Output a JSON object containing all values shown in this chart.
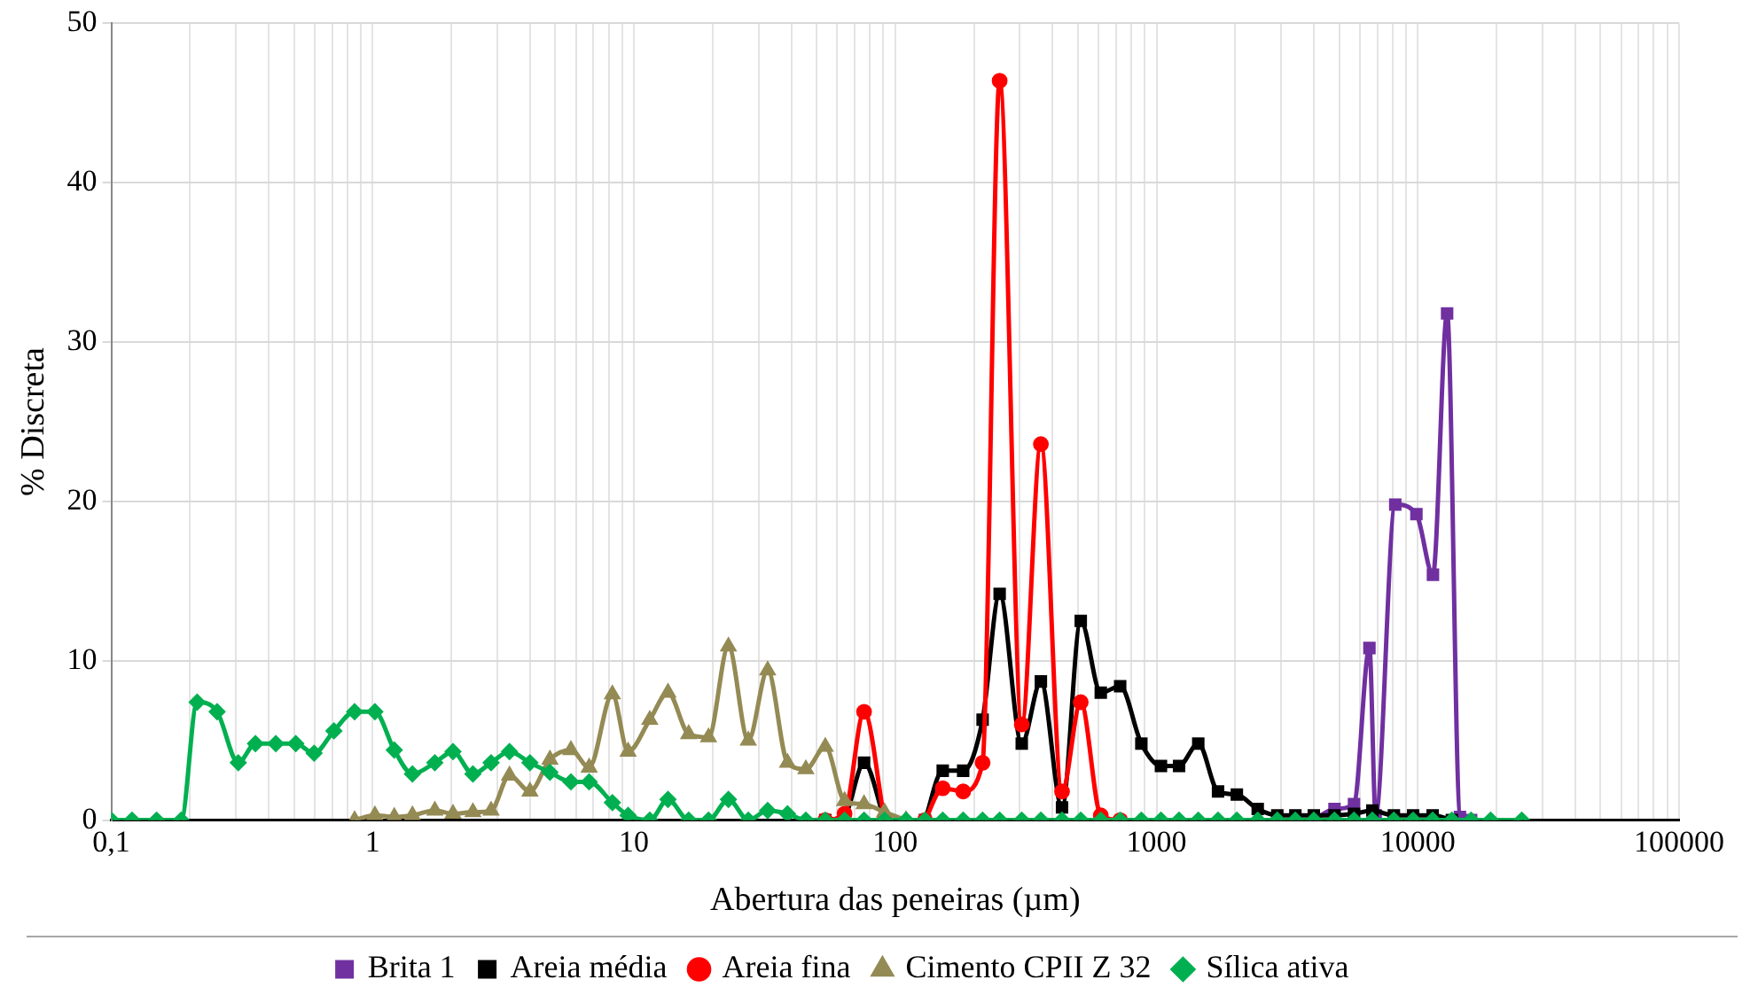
{
  "chart_data": {
    "type": "line",
    "xlabel": "Abertura das peneiras (µm)",
    "ylabel": "% Discreta",
    "log": "x",
    "grid": true,
    "legend": "bottom",
    "line_style": "solid",
    "xlim": [
      0.1,
      100000
    ],
    "ylim": [
      0,
      50
    ],
    "yticks": [
      0,
      10,
      20,
      30,
      40,
      50
    ],
    "xticks": [
      {
        "value": 0.1,
        "label": "0,1"
      },
      {
        "value": 0.2,
        "label": null
      },
      {
        "value": 0.3,
        "label": null
      },
      {
        "value": 0.4,
        "label": null
      },
      {
        "value": 0.5,
        "label": null
      },
      {
        "value": 0.6,
        "label": null
      },
      {
        "value": 0.7,
        "label": null
      },
      {
        "value": 0.8,
        "label": null
      },
      {
        "value": 0.9,
        "label": null
      },
      1,
      {
        "value": 2,
        "label": null
      },
      {
        "value": 3,
        "label": null
      },
      {
        "value": 4,
        "label": null
      },
      {
        "value": 5,
        "label": null
      },
      {
        "value": 6,
        "label": null
      },
      {
        "value": 7,
        "label": null
      },
      {
        "value": 8,
        "label": null
      },
      {
        "value": 9,
        "label": null
      },
      10,
      {
        "value": 20,
        "label": null
      },
      {
        "value": 30,
        "label": null
      },
      {
        "value": 40,
        "label": null
      },
      {
        "value": 50,
        "label": null
      },
      {
        "value": 60,
        "label": null
      },
      {
        "value": 70,
        "label": null
      },
      {
        "value": 80,
        "label": null
      },
      {
        "value": 90,
        "label": null
      },
      100,
      {
        "value": 200,
        "label": null
      },
      {
        "value": 300,
        "label": null
      },
      {
        "value": 400,
        "label": null
      },
      {
        "value": 500,
        "label": null
      },
      {
        "value": 600,
        "label": null
      },
      {
        "value": 700,
        "label": null
      },
      {
        "value": 800,
        "label": null
      },
      {
        "value": 900,
        "label": null
      },
      1000,
      {
        "value": 2000,
        "label": null
      },
      {
        "value": 3000,
        "label": null
      },
      {
        "value": 4000,
        "label": null
      },
      {
        "value": 5000,
        "label": null
      },
      {
        "value": 6000,
        "label": null
      },
      {
        "value": 7000,
        "label": null
      },
      {
        "value": 8000,
        "label": null
      },
      {
        "value": 9000,
        "label": null
      },
      10000,
      {
        "value": 20000,
        "label": null
      },
      {
        "value": 30000,
        "label": null
      },
      {
        "value": 40000,
        "label": null
      },
      {
        "value": 50000,
        "label": null
      },
      {
        "value": 60000,
        "label": null
      },
      {
        "value": 70000,
        "label": null
      },
      {
        "value": 80000,
        "label": null
      },
      {
        "value": 90000,
        "label": null
      },
      100000
    ],
    "x": [
      0.1,
      0.12,
      0.149,
      0.185,
      0.213,
      0.254,
      0.306,
      0.356,
      0.426,
      0.508,
      0.597,
      0.711,
      0.853,
      1.02,
      1.21,
      1.42,
      1.73,
      2.03,
      2.42,
      2.84,
      3.34,
      4.0,
      4.77,
      5.74,
      6.74,
      8.27,
      9.5,
      11.5,
      13.5,
      16.2,
      19.3,
      23,
      27.4,
      32.5,
      38.7,
      45.5,
      54,
      64,
      76,
      91,
      110,
      130,
      152,
      182,
      216,
      251,
      305,
      361,
      435,
      513,
      612,
      726,
      875,
      1040,
      1220,
      1445,
      1720,
      2030,
      2440,
      2900,
      3400,
      4000,
      4800,
      5700,
      6700,
      8100,
      9600,
      11400,
      13500,
      16000,
      19000,
      25000
    ],
    "series": [
      {
        "name": "Brita 1",
        "color": "#7030a0",
        "marker": "square",
        "x": [
          4000,
          4800,
          5700,
          6530,
          6900,
          8200,
          9880,
          11430,
          12950,
          14500,
          16000
        ],
        "values": [
          0,
          0.7,
          1.0,
          10.8,
          0.3,
          19.8,
          19.2,
          15.4,
          31.8,
          0.2,
          0
        ]
      },
      {
        "name": "Areia média",
        "color": "#000000",
        "marker": "square",
        "values": [
          null,
          null,
          null,
          null,
          null,
          null,
          null,
          null,
          null,
          null,
          null,
          null,
          null,
          null,
          null,
          null,
          null,
          null,
          null,
          null,
          null,
          null,
          null,
          null,
          null,
          null,
          null,
          null,
          null,
          null,
          null,
          null,
          null,
          null,
          null,
          null,
          0,
          0.3,
          3.6,
          0,
          null,
          0,
          3.1,
          3.1,
          6.3,
          14.2,
          4.8,
          8.7,
          0.8,
          12.5,
          8.0,
          8.4,
          4.8,
          3.4,
          3.4,
          4.8,
          1.8,
          1.6,
          0.7,
          0.3,
          0.3,
          0.3,
          0.3,
          0.4,
          0.6,
          0.3,
          0.3,
          0.3,
          0,
          null,
          null,
          null
        ]
      },
      {
        "name": "Areia fina",
        "color": "#ff0000",
        "marker": "circle",
        "values": [
          null,
          null,
          null,
          null,
          null,
          null,
          null,
          null,
          null,
          null,
          null,
          null,
          null,
          null,
          null,
          null,
          null,
          null,
          null,
          null,
          null,
          null,
          null,
          null,
          null,
          null,
          null,
          null,
          null,
          null,
          null,
          null,
          null,
          null,
          null,
          null,
          0,
          0.4,
          6.8,
          0,
          null,
          0,
          2.0,
          1.8,
          3.6,
          46.4,
          6.0,
          23.6,
          1.8,
          7.4,
          0.3,
          0,
          null,
          null,
          null,
          null,
          null,
          null,
          null,
          null,
          null,
          null,
          null,
          null,
          null,
          null,
          null,
          null,
          null,
          null,
          null,
          null
        ]
      },
      {
        "name": "Cimento CPII Z 32",
        "color": "#948a54",
        "marker": "triangle",
        "values": [
          null,
          null,
          null,
          null,
          null,
          null,
          null,
          null,
          null,
          null,
          null,
          null,
          0,
          0.3,
          0.2,
          0.3,
          0.6,
          0.4,
          0.5,
          0.6,
          2.8,
          1.8,
          3.8,
          4.4,
          3.3,
          7.9,
          4.3,
          6.3,
          8.0,
          5.4,
          5.2,
          10.9,
          5.0,
          9.4,
          3.6,
          3.2,
          4.6,
          1.2,
          1.0,
          0.5,
          0,
          null,
          null,
          null,
          null,
          null,
          null,
          null,
          null,
          null,
          null,
          null,
          null,
          null,
          null,
          null,
          null,
          null,
          null,
          null,
          null,
          null,
          null,
          null,
          null,
          null,
          null,
          null,
          null,
          null,
          null,
          null
        ]
      },
      {
        "name": "Sílica ativa",
        "color": "#00b050",
        "marker": "diamond",
        "values": [
          0,
          0,
          0,
          0,
          7.4,
          6.8,
          3.6,
          4.8,
          4.8,
          4.8,
          4.2,
          5.6,
          6.8,
          6.8,
          4.4,
          2.9,
          3.6,
          4.3,
          2.9,
          3.6,
          4.3,
          3.6,
          3.0,
          2.4,
          2.4,
          1.1,
          0.3,
          0,
          1.3,
          0,
          0,
          1.3,
          0,
          0.6,
          0.4,
          0,
          0,
          0,
          0,
          0,
          0,
          0,
          0,
          0,
          0,
          0,
          0,
          0,
          0,
          0,
          0,
          0,
          0,
          0,
          0,
          0,
          0,
          0,
          0,
          0,
          0,
          0,
          0,
          0,
          0,
          0,
          0,
          0,
          0,
          0,
          0,
          0
        ]
      }
    ]
  }
}
